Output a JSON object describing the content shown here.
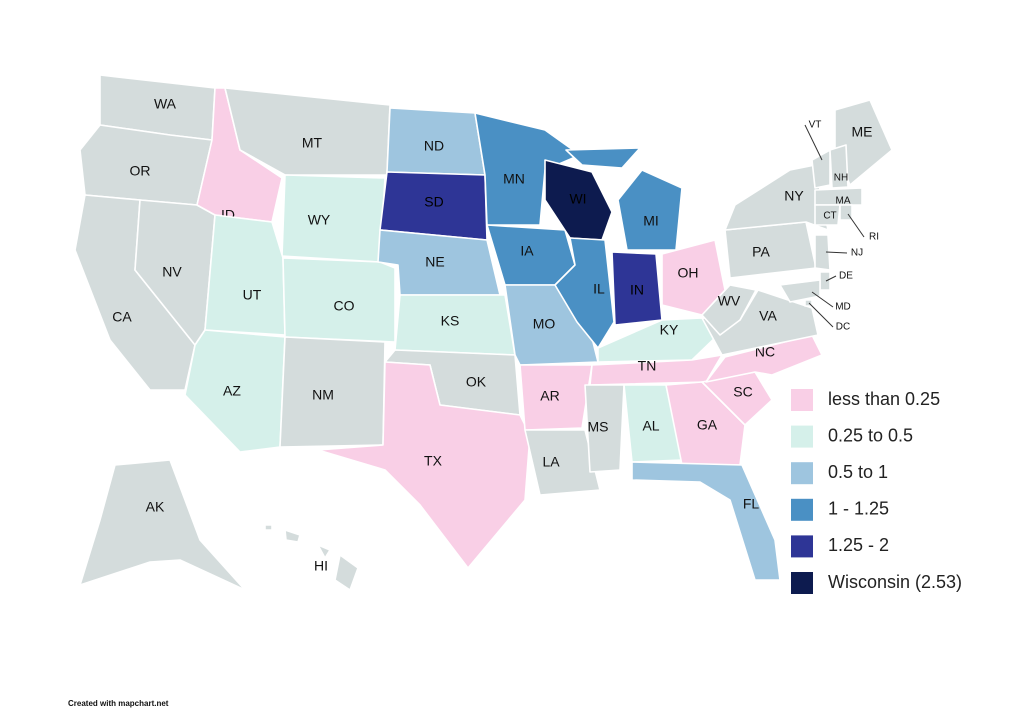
{
  "states": [
    {
      "label": "WA",
      "color": "#d4dcdc"
    },
    {
      "label": "OR",
      "color": "#d4dcdc"
    },
    {
      "label": "CA",
      "color": "#d4dcdc"
    },
    {
      "label": "NV",
      "color": "#d4dcdc"
    },
    {
      "label": "ID",
      "color": "#f9cfe6"
    },
    {
      "label": "MT",
      "color": "#d4dcdc"
    },
    {
      "label": "WY",
      "color": "#d5f0ea"
    },
    {
      "label": "UT",
      "color": "#d5f0ea"
    },
    {
      "label": "CO",
      "color": "#d5f0ea"
    },
    {
      "label": "AZ",
      "color": "#d5f0ea"
    },
    {
      "label": "NM",
      "color": "#d4dcdc"
    },
    {
      "label": "ND",
      "color": "#9ec5df"
    },
    {
      "label": "SD",
      "color": "#2e3596"
    },
    {
      "label": "NE",
      "color": "#9ec5df"
    },
    {
      "label": "KS",
      "color": "#d5f0ea"
    },
    {
      "label": "OK",
      "color": "#d4dcdc"
    },
    {
      "label": "TX",
      "color": "#f9cfe6"
    },
    {
      "label": "MN",
      "color": "#4a90c4"
    },
    {
      "label": "IA",
      "color": "#4a90c4"
    },
    {
      "label": "MO",
      "color": "#9ec5df"
    },
    {
      "label": "AR",
      "color": "#f9cfe6"
    },
    {
      "label": "LA",
      "color": "#d4dcdc"
    },
    {
      "label": "WI",
      "color": "#0d1b4f"
    },
    {
      "label": "IL",
      "color": "#4a90c4"
    },
    {
      "label": "MI",
      "color": "#4a90c4"
    },
    {
      "label": "IN",
      "color": "#2e3596"
    },
    {
      "label": "OH",
      "color": "#f9cfe6"
    },
    {
      "label": "KY",
      "color": "#d5f0ea"
    },
    {
      "label": "TN",
      "color": "#f9cfe6"
    },
    {
      "label": "MS",
      "color": "#d4dcdc"
    },
    {
      "label": "AL",
      "color": "#d5f0ea"
    },
    {
      "label": "GA",
      "color": "#f9cfe6"
    },
    {
      "label": "FL",
      "color": "#9ec5df"
    },
    {
      "label": "SC",
      "color": "#f9cfe6"
    },
    {
      "label": "NC",
      "color": "#f9cfe6"
    },
    {
      "label": "VA",
      "color": "#d4dcdc"
    },
    {
      "label": "WV",
      "color": "#d4dcdc"
    },
    {
      "label": "PA",
      "color": "#d4dcdc"
    },
    {
      "label": "NY",
      "color": "#d4dcdc"
    },
    {
      "label": "ME",
      "color": "#d4dcdc"
    },
    {
      "label": "VT",
      "color": "#d4dcdc"
    },
    {
      "label": "NH",
      "color": "#d4dcdc"
    },
    {
      "label": "MA",
      "color": "#d4dcdc"
    },
    {
      "label": "CT",
      "color": "#d4dcdc"
    },
    {
      "label": "RI",
      "color": "#d4dcdc"
    },
    {
      "label": "NJ",
      "color": "#d4dcdc"
    },
    {
      "label": "DE",
      "color": "#d4dcdc"
    },
    {
      "label": "MD",
      "color": "#d4dcdc"
    },
    {
      "label": "DC",
      "color": "#d4dcdc"
    },
    {
      "label": "AK",
      "color": "#d4dcdc"
    },
    {
      "label": "HI",
      "color": "#d4dcdc"
    }
  ],
  "legend": [
    {
      "label": "less than 0.25",
      "color": "#f9cfe6"
    },
    {
      "label": "0.25 to 0.5",
      "color": "#d5f0ea"
    },
    {
      "label": "0.5 to 1",
      "color": "#9ec5df"
    },
    {
      "label": "1 - 1.25",
      "color": "#4a90c4"
    },
    {
      "label": "1.25 - 2",
      "color": "#2e3596"
    },
    {
      "label": "Wisconsin (2.53)",
      "color": "#0d1b4f"
    }
  ],
  "credit": "Created with mapchart.net"
}
